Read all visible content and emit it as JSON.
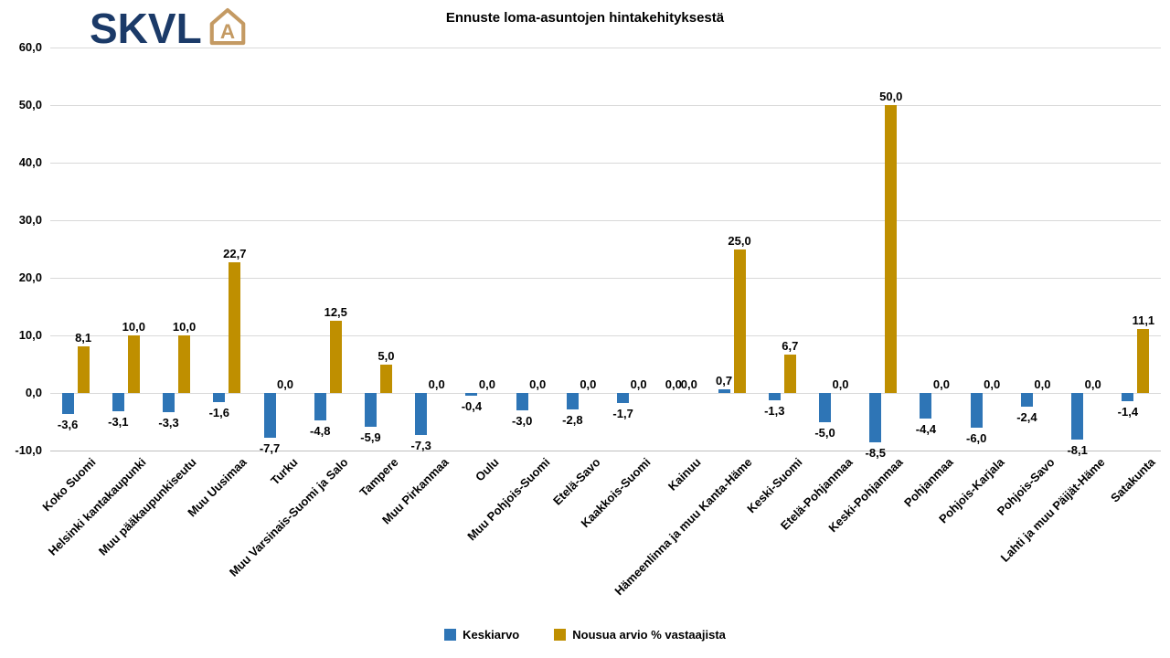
{
  "header": {
    "logo_text": "SKVL",
    "logo_icon_letter": "A",
    "title": "Ennuste loma-asuntojen hintakehityksestä"
  },
  "colors": {
    "keskiarvo_blue": "#2E75B6",
    "nousua_gold": "#BF8F00",
    "grid": "#D9D9D9",
    "axis": "#BFBFBF",
    "logo_navy": "#1B3A68",
    "logo_gold": "#C49A63"
  },
  "chart_data": {
    "type": "bar",
    "title": "Ennuste loma-asuntojen hintakehityksestä",
    "categories": [
      "Koko Suomi",
      "Helsinki kantakaupunki",
      "Muu pääkaupunkiseutu",
      "Muu Uusimaa",
      "Turku",
      "Muu Varsinais-Suomi ja Salo",
      "Tampere",
      "Muu Pirkanmaa",
      "Oulu",
      "Muu Pohjois-Suomi",
      "Etelä-Savo",
      "Kaakkois-Suomi",
      "Kainuu",
      "Hämeenlinna ja muu Kanta-Häme",
      "Keski-Suomi",
      "Etelä-Pohjanmaa",
      "Keski-Pohjanmaa",
      "Pohjanmaa",
      "Pohjois-Karjala",
      "Pohjois-Savo",
      "Lahti ja muu Päijät-Häme",
      "Satakunta"
    ],
    "series": [
      {
        "name": "Keskiarvo",
        "color": "#2E75B6",
        "values": [
          -3.6,
          -3.1,
          -3.3,
          -1.6,
          -7.7,
          -4.8,
          -5.9,
          -7.3,
          -0.4,
          -3.0,
          -2.8,
          -1.7,
          0.0,
          0.7,
          -1.3,
          -5.0,
          -8.5,
          -4.4,
          -6.0,
          -2.4,
          -8.1,
          -1.4
        ],
        "labels": [
          "-3,6",
          "-3,1",
          "-3,3",
          "-1,6",
          "-7,7",
          "-4,8",
          "-5,9",
          "-7,3",
          "-0,4",
          "-3,0",
          "-2,8",
          "-1,7",
          "0,0",
          "0,7",
          "-1,3",
          "-5,0",
          "-8,5",
          "-4,4",
          "-6,0",
          "-2,4",
          "-8,1",
          "-1,4"
        ]
      },
      {
        "name": "Nousua arvio % vastaajista",
        "color": "#BF8F00",
        "values": [
          8.1,
          10.0,
          10.0,
          22.7,
          0.0,
          12.5,
          5.0,
          0.0,
          0.0,
          0.0,
          0.0,
          0.0,
          0.0,
          25.0,
          6.7,
          0.0,
          50.0,
          0.0,
          0.0,
          0.0,
          0.0,
          11.1
        ],
        "labels": [
          "8,1",
          "10,0",
          "10,0",
          "22,7",
          "0,0",
          "12,5",
          "5,0",
          "0,0",
          "0,0",
          "0,0",
          "0,0",
          "0,0",
          "0,0",
          "25,0",
          "6,7",
          "0,0",
          "50,0",
          "0,0",
          "0,0",
          "0,0",
          "0,0",
          "11,1"
        ]
      }
    ],
    "y_ticks": [
      "60,0",
      "50,0",
      "40,0",
      "30,0",
      "20,0",
      "10,0",
      "0,0",
      "-10,0"
    ],
    "y_tick_values": [
      60,
      50,
      40,
      30,
      20,
      10,
      0,
      -10
    ],
    "ylim": [
      -10,
      60
    ],
    "grid": true,
    "legend_position": "bottom"
  }
}
